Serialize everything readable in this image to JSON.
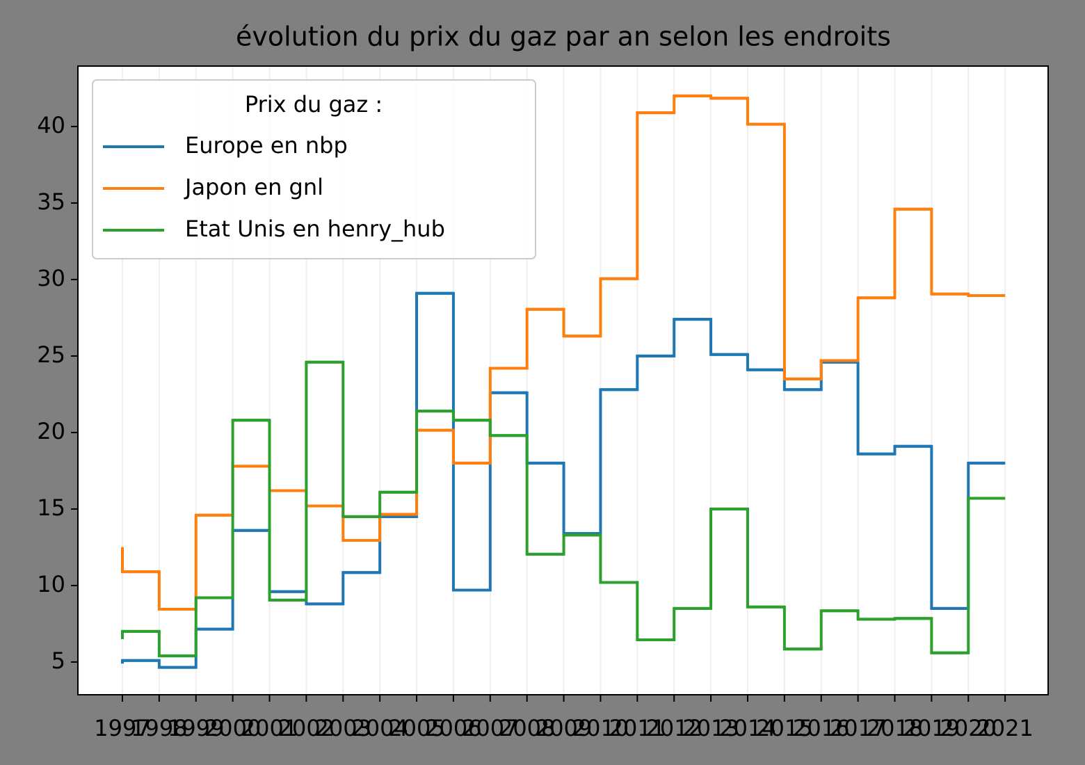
{
  "chart_data": {
    "type": "step",
    "title": "évolution du prix du gaz par an selon les endroits",
    "legend_title": "Prix du gaz :",
    "legend": "upper left",
    "grid": "x",
    "x": [
      1997,
      1998,
      1999,
      2000,
      2001,
      2002,
      2003,
      2004,
      2005,
      2006,
      2007,
      2008,
      2009,
      2010,
      2011,
      2012,
      2013,
      2014,
      2015,
      2016,
      2017,
      2018,
      2019,
      2020,
      2021
    ],
    "xticks": [
      1997,
      1998,
      1999,
      2000,
      2001,
      2002,
      2003,
      2004,
      2005,
      2006,
      2007,
      2008,
      2009,
      2010,
      2011,
      2012,
      2013,
      2014,
      2015,
      2016,
      2017,
      2018,
      2019,
      2020,
      2021
    ],
    "xlim": [
      1995.79,
      2022.17
    ],
    "ylim": [
      2.86,
      43.95
    ],
    "yticks": [
      5,
      10,
      15,
      20,
      25,
      30,
      35,
      40
    ],
    "series": [
      {
        "name": "Europe en nbp",
        "color": "#1f77b4",
        "values": [
          4.9,
          5.1,
          4.65,
          7.15,
          13.6,
          9.6,
          8.8,
          10.85,
          14.5,
          29.1,
          9.7,
          22.6,
          18.0,
          13.4,
          22.8,
          25.0,
          27.4,
          25.1,
          24.1,
          22.8,
          24.6,
          18.6,
          19.1,
          8.5,
          18.0
        ]
      },
      {
        "name": "Japon en gnl",
        "color": "#ff7f0e",
        "values": [
          12.5,
          10.9,
          8.45,
          14.6,
          17.8,
          16.2,
          15.2,
          12.95,
          14.65,
          20.15,
          18.0,
          24.2,
          28.05,
          26.3,
          30.05,
          40.9,
          42.0,
          41.85,
          40.15,
          23.5,
          24.7,
          28.8,
          34.6,
          29.05,
          28.95
        ]
      },
      {
        "name": "Etat Unis en henry_hub",
        "color": "#2ca02c",
        "values": [
          6.5,
          7.0,
          5.4,
          9.2,
          20.8,
          9.05,
          24.6,
          14.5,
          16.1,
          21.4,
          20.8,
          19.8,
          12.05,
          13.3,
          10.2,
          6.45,
          8.5,
          15.0,
          8.6,
          5.85,
          8.35,
          7.8,
          7.85,
          5.6,
          15.7
        ]
      }
    ]
  }
}
